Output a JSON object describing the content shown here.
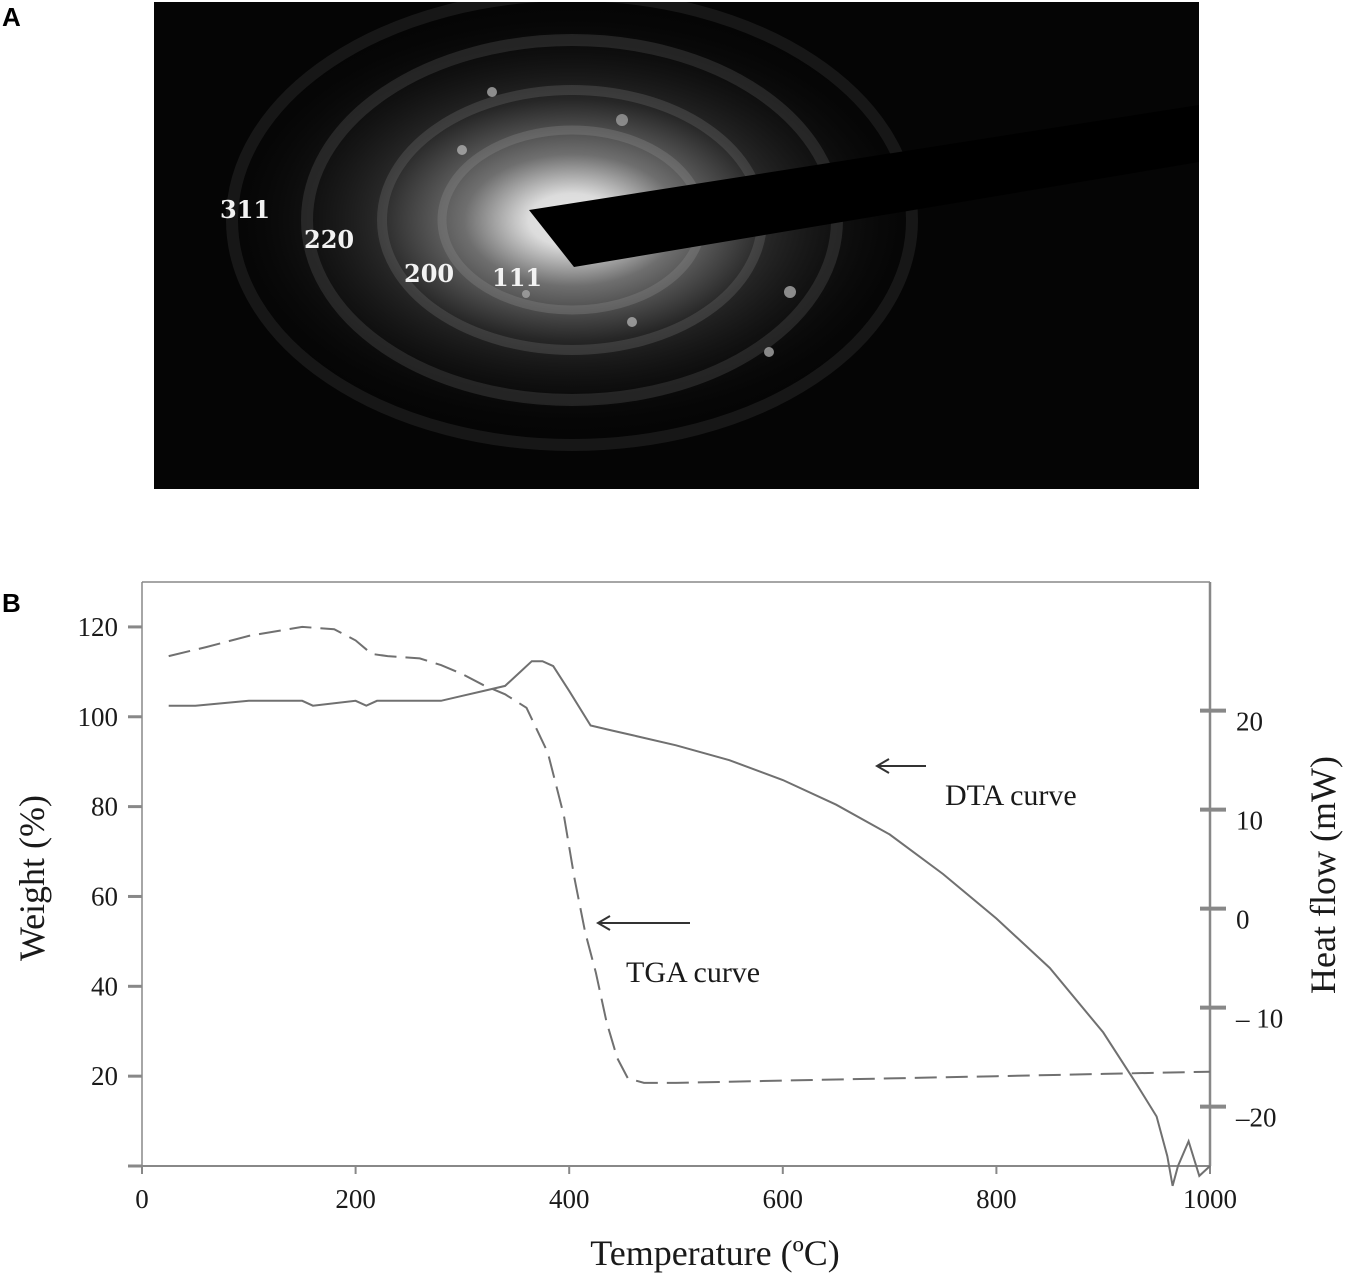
{
  "panels": {
    "a": "A",
    "b": "B"
  },
  "diffraction": {
    "ring_labels": [
      "311",
      "220",
      "200",
      "111"
    ]
  },
  "chart_data": {
    "type": "line",
    "x": [
      25,
      50,
      100,
      150,
      170,
      200,
      215,
      225,
      250,
      280,
      300,
      320,
      340,
      350,
      360,
      370,
      380,
      390,
      400,
      410,
      420,
      430,
      440,
      450,
      460,
      470,
      500,
      550,
      600,
      650,
      700,
      750,
      800,
      850,
      900,
      930,
      950,
      960,
      965,
      970,
      980,
      990,
      1000
    ],
    "xlabel": "Temperature (ºC)",
    "xlim": [
      0,
      1000
    ],
    "xticks": [
      0,
      200,
      400,
      600,
      800,
      1000
    ],
    "y_left": {
      "label": "Weight (%)",
      "ticks": [
        20,
        40,
        60,
        80,
        100,
        120
      ],
      "ylim": [
        0,
        130
      ]
    },
    "y_right": {
      "label": "Heat flow (mW)",
      "ticks": [
        20,
        10,
        0,
        -10,
        -20
      ],
      "tick_labels": [
        "20",
        "10",
        "0",
        "– 10",
        "–20"
      ],
      "ylim": [
        -26,
        33
      ]
    },
    "series": [
      {
        "name": "TGA curve",
        "axis": "left",
        "style": "dashed",
        "x": [
          25,
          60,
          100,
          150,
          180,
          200,
          215,
          230,
          260,
          280,
          300,
          320,
          340,
          360,
          380,
          395,
          405,
          415,
          425,
          435,
          445,
          455,
          470,
          500,
          600,
          700,
          800,
          900,
          1000
        ],
        "values": [
          113.5,
          115.5,
          118,
          120,
          119.5,
          117,
          114,
          113.5,
          113,
          111.5,
          109.5,
          107,
          105,
          102,
          92,
          78,
          64,
          52,
          43,
          32,
          24,
          19.5,
          18.5,
          18.5,
          19,
          19.5,
          20,
          20.5,
          21
        ]
      },
      {
        "name": "DTA curve",
        "axis": "right",
        "style": "solid",
        "x": [
          25,
          50,
          100,
          150,
          160,
          200,
          210,
          220,
          250,
          280,
          300,
          320,
          340,
          355,
          365,
          375,
          385,
          400,
          420,
          440,
          460,
          500,
          550,
          600,
          650,
          700,
          750,
          800,
          850,
          900,
          930,
          950,
          960,
          965,
          970,
          980,
          990,
          1000
        ],
        "values": [
          20.5,
          20.5,
          21,
          21,
          20.5,
          21,
          20.5,
          21,
          21,
          21,
          21.5,
          22,
          22.5,
          24,
          25,
          25,
          24.5,
          22,
          18.5,
          18,
          17.5,
          16.5,
          15,
          13,
          10.5,
          7.5,
          3.5,
          -1,
          -6,
          -12.5,
          -17.5,
          -21,
          -25,
          -28,
          -26,
          -23.5,
          -27,
          -26
        ]
      }
    ],
    "annotations": [
      "DTA curve",
      "TGA curve"
    ],
    "grid": false,
    "colors": {
      "tga": "#666666",
      "dta": "#666666",
      "axes": "#888888"
    }
  }
}
